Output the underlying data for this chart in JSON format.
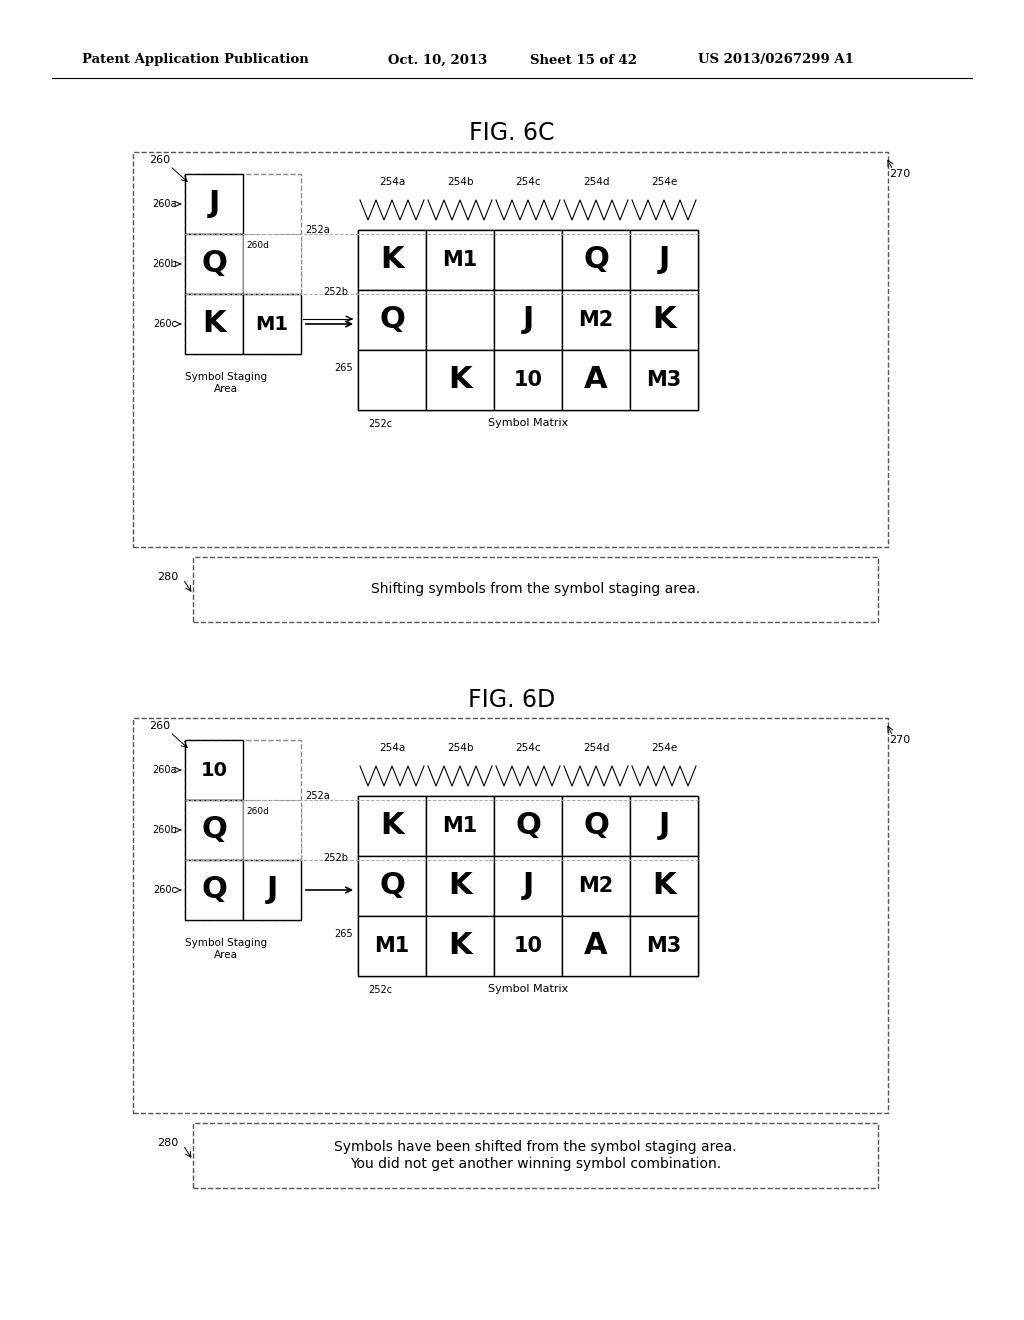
{
  "bg_color": "#ffffff",
  "header_text": "Patent Application Publication",
  "header_date": "Oct. 10, 2013",
  "header_sheet": "Sheet 15 of 42",
  "header_patent": "US 2013/0267299 A1",
  "fig6c": {
    "title": "FIG. 6C",
    "staging_symbols_col0": [
      "J",
      "Q",
      "K"
    ],
    "staging_symbols_col1": [
      "",
      "",
      "M1"
    ],
    "matrix_symbols": [
      [
        "K",
        "M1",
        "",
        "Q",
        "J"
      ],
      [
        "Q",
        "",
        "J",
        "M2",
        "K"
      ],
      [
        "",
        "K",
        "10",
        "A",
        "M3"
      ]
    ],
    "col_labels": [
      "254a",
      "254b",
      "254c",
      "254d",
      "254e"
    ],
    "row_labels_staging": [
      "260a",
      "260b",
      "260c"
    ],
    "label_260": "260",
    "label_270": "270",
    "label_280": "280",
    "label_252a": "252a",
    "label_252b": "252b",
    "label_252c": "252c",
    "label_260d": "260d",
    "label_265": "265",
    "staging_area_label": "Symbol Staging\nArea",
    "matrix_label": "Symbol Matrix",
    "caption": "Shifting symbols from the symbol staging area.",
    "arrow_style": "double"
  },
  "fig6d": {
    "title": "FIG. 6D",
    "staging_symbols_col0": [
      "10",
      "Q",
      "Q"
    ],
    "staging_symbols_col1": [
      "",
      "",
      "J"
    ],
    "matrix_symbols": [
      [
        "K",
        "M1",
        "Q",
        "Q",
        "J"
      ],
      [
        "Q",
        "K",
        "J",
        "M2",
        "K"
      ],
      [
        "M1",
        "K",
        "10",
        "A",
        "M3"
      ]
    ],
    "col_labels": [
      "254a",
      "254b",
      "254c",
      "254d",
      "254e"
    ],
    "row_labels_staging": [
      "260a",
      "260b",
      "260c"
    ],
    "label_260": "260",
    "label_270": "270",
    "label_280": "280",
    "label_252a": "252a",
    "label_252b": "252b",
    "label_252c": "252c",
    "label_260d": "260d",
    "label_265": "265",
    "staging_area_label": "Symbol Staging\nArea",
    "matrix_label": "Symbol Matrix",
    "caption": "Symbols have been shifted from the symbol staging area.\nYou did not get another winning symbol combination.",
    "arrow_style": "single"
  }
}
